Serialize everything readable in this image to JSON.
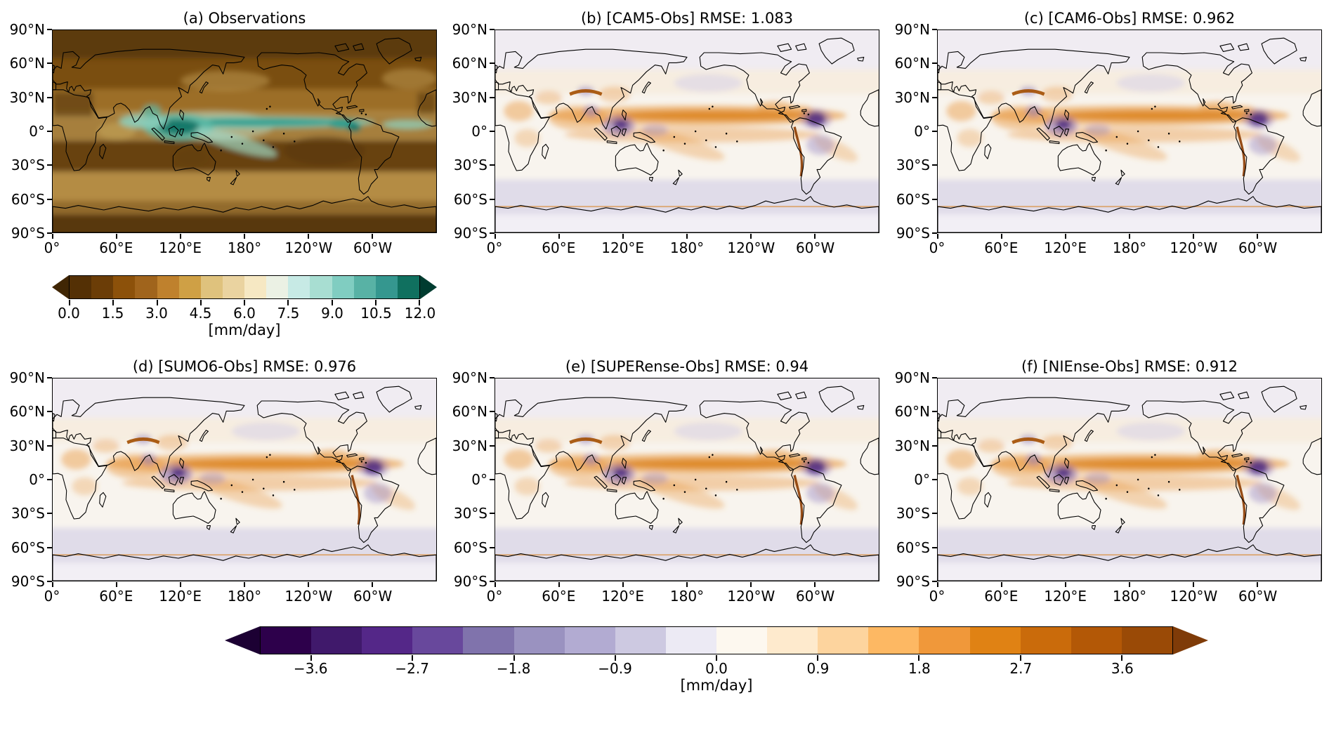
{
  "chart_data": {
    "type": "heatmap",
    "subtype": "global equirectangular map panels (precipitation and model-minus-observation bias)",
    "panel_grid": [
      [
        "a",
        "b",
        "c"
      ],
      [
        "d",
        "e",
        "f"
      ]
    ],
    "lon_range": [
      0,
      360
    ],
    "lat_range": [
      -90,
      90
    ],
    "panels": [
      {
        "id": "a",
        "title": "(a) Observations",
        "quantity": "precipitation",
        "colorbar": "obs"
      },
      {
        "id": "b",
        "title": "(b) [CAM5-Obs] RMSE: 1.083",
        "model": "CAM5",
        "rmse": 1.083,
        "colorbar": "bias"
      },
      {
        "id": "c",
        "title": "(c) [CAM6-Obs] RMSE: 0.962",
        "model": "CAM6",
        "rmse": 0.962,
        "colorbar": "bias"
      },
      {
        "id": "d",
        "title": "(d) [SUMO6-Obs] RMSE: 0.976",
        "model": "SUMO6",
        "rmse": 0.976,
        "colorbar": "bias"
      },
      {
        "id": "e",
        "title": "(e) [SUPERense-Obs] RMSE: 0.94",
        "model": "SUPERense",
        "rmse": 0.94,
        "colorbar": "bias"
      },
      {
        "id": "f",
        "title": "(f) [NIEnse-Obs] RMSE: 0.912",
        "model": "NIEnse",
        "rmse": 0.912,
        "colorbar": "bias"
      }
    ],
    "x_ticks": [
      {
        "label": "0°",
        "lon": 0
      },
      {
        "label": "60°E",
        "lon": 60
      },
      {
        "label": "120°E",
        "lon": 120
      },
      {
        "label": "180°",
        "lon": 180
      },
      {
        "label": "120°W",
        "lon": 240
      },
      {
        "label": "60°W",
        "lon": 300
      }
    ],
    "y_ticks": [
      {
        "label": "90°N",
        "lat": 90
      },
      {
        "label": "60°N",
        "lat": 60
      },
      {
        "label": "30°N",
        "lat": 30
      },
      {
        "label": "0°",
        "lat": 0
      },
      {
        "label": "30°S",
        "lat": -30
      },
      {
        "label": "60°S",
        "lat": -60
      },
      {
        "label": "90°S",
        "lat": -90
      }
    ],
    "colorbars": {
      "obs": {
        "label": "[mm/day]",
        "units": "mm/day",
        "range": [
          0,
          12
        ],
        "tick_interval": 1.5,
        "colormap": "brown to tan to cream to teal (BrBG-like), discrete",
        "ticks": [
          {
            "label": "0.0",
            "value": 0.0
          },
          {
            "label": "1.5",
            "value": 1.5
          },
          {
            "label": "3.0",
            "value": 3.0
          },
          {
            "label": "4.5",
            "value": 4.5
          },
          {
            "label": "6.0",
            "value": 6.0
          },
          {
            "label": "7.5",
            "value": 7.5
          },
          {
            "label": "9.0",
            "value": 9.0
          },
          {
            "label": "10.5",
            "value": 10.5
          },
          {
            "label": "12.0",
            "value": 12.0
          }
        ],
        "segment_colors": [
          "#543005",
          "#6b3d07",
          "#8c510a",
          "#a0641c",
          "#bf812d",
          "#cfa045",
          "#dfc27d",
          "#ead3a0",
          "#f6e8c3",
          "#ebf1e4",
          "#c7eae5",
          "#a8ded2",
          "#80cdc1",
          "#58b2a5",
          "#35978f",
          "#10705f"
        ],
        "arrow_colors": [
          "#402604",
          "#003c30"
        ]
      },
      "bias": {
        "label": "[mm/day]",
        "units": "mm/day",
        "range": [
          -4.05,
          4.05
        ],
        "tick_interval": 0.9,
        "colormap": "dark purple to white to dark orange-brown (PuOr reversed), discrete, arrows both ends",
        "ticks": [
          {
            "label": "−3.6",
            "value": -3.6
          },
          {
            "label": "−2.7",
            "value": -2.7
          },
          {
            "label": "−1.8",
            "value": -1.8
          },
          {
            "label": "−0.9",
            "value": -0.9
          },
          {
            "label": "0.0",
            "value": 0.0
          },
          {
            "label": "0.9",
            "value": 0.9
          },
          {
            "label": "1.8",
            "value": 1.8
          },
          {
            "label": "2.7",
            "value": 2.7
          },
          {
            "label": "3.6",
            "value": 3.6
          }
        ],
        "segment_colors": [
          "#2d004b",
          "#40196b",
          "#542788",
          "#68489c",
          "#8073ac",
          "#9a92c0",
          "#b2abd2",
          "#cdc9e1",
          "#eceaf4",
          "#fdf8ef",
          "#feeacd",
          "#fdd49e",
          "#fdb863",
          "#f0983a",
          "#e08214",
          "#ca6b0b",
          "#b35806",
          "#9a4a06"
        ],
        "arrow_colors": [
          "#1c0033",
          "#7f3b08"
        ]
      }
    }
  }
}
